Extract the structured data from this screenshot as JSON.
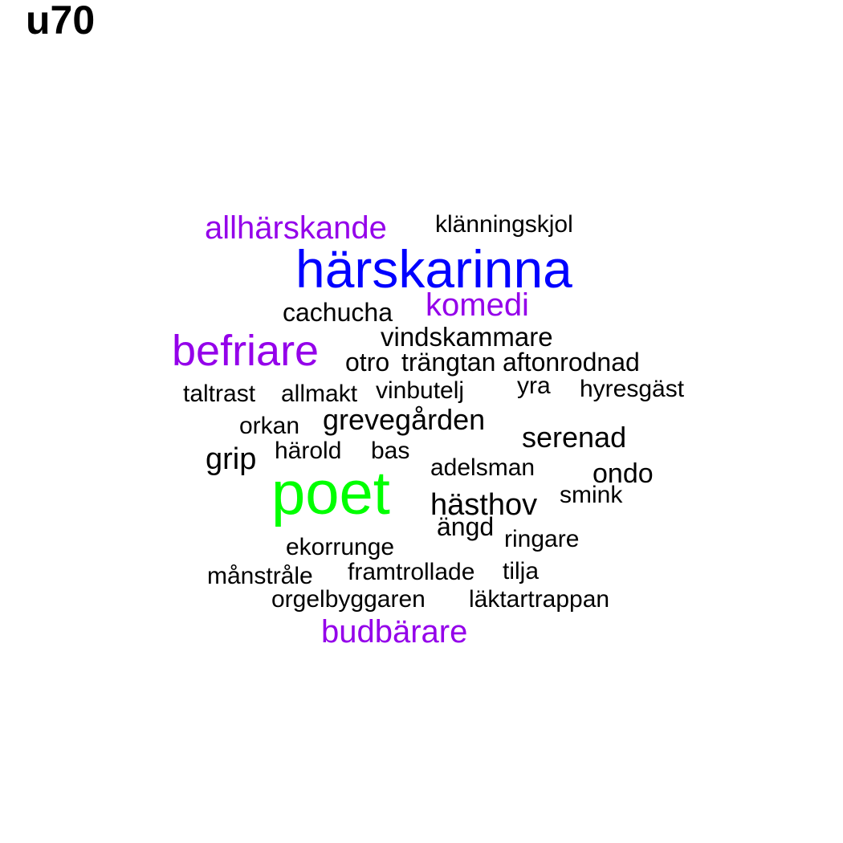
{
  "title": "u70",
  "colors": {
    "purple": "#9400ea",
    "blue": "#0000ff",
    "green": "#00ff00",
    "black": "#000000"
  },
  "words": [
    {
      "text": "allhärskande",
      "color": "purple"
    },
    {
      "text": "klänningskjol",
      "color": "black"
    },
    {
      "text": "härskarinna",
      "color": "blue"
    },
    {
      "text": "cachucha",
      "color": "black"
    },
    {
      "text": "komedi",
      "color": "purple"
    },
    {
      "text": "befriare",
      "color": "purple"
    },
    {
      "text": "vindskammare",
      "color": "black"
    },
    {
      "text": "otro",
      "color": "black"
    },
    {
      "text": "trängtan",
      "color": "black"
    },
    {
      "text": "aftonrodnad",
      "color": "black"
    },
    {
      "text": "taltrast",
      "color": "black"
    },
    {
      "text": "allmakt",
      "color": "black"
    },
    {
      "text": "vinbutelj",
      "color": "black"
    },
    {
      "text": "yra",
      "color": "black"
    },
    {
      "text": "hyresgäst",
      "color": "black"
    },
    {
      "text": "orkan",
      "color": "black"
    },
    {
      "text": "grevegården",
      "color": "black"
    },
    {
      "text": "serenad",
      "color": "black"
    },
    {
      "text": "grip",
      "color": "black"
    },
    {
      "text": "härold",
      "color": "black"
    },
    {
      "text": "bas",
      "color": "black"
    },
    {
      "text": "adelsman",
      "color": "black"
    },
    {
      "text": "ondo",
      "color": "black"
    },
    {
      "text": "poet",
      "color": "green"
    },
    {
      "text": "hästhov",
      "color": "black"
    },
    {
      "text": "smink",
      "color": "black"
    },
    {
      "text": "ängd",
      "color": "black"
    },
    {
      "text": "ringare",
      "color": "black"
    },
    {
      "text": "ekorrunge",
      "color": "black"
    },
    {
      "text": "månstråle",
      "color": "black"
    },
    {
      "text": "framtrollade",
      "color": "black"
    },
    {
      "text": "tilja",
      "color": "black"
    },
    {
      "text": "orgelbyggaren",
      "color": "black"
    },
    {
      "text": "läktartrappan",
      "color": "black"
    },
    {
      "text": "budbärare",
      "color": "purple"
    }
  ]
}
